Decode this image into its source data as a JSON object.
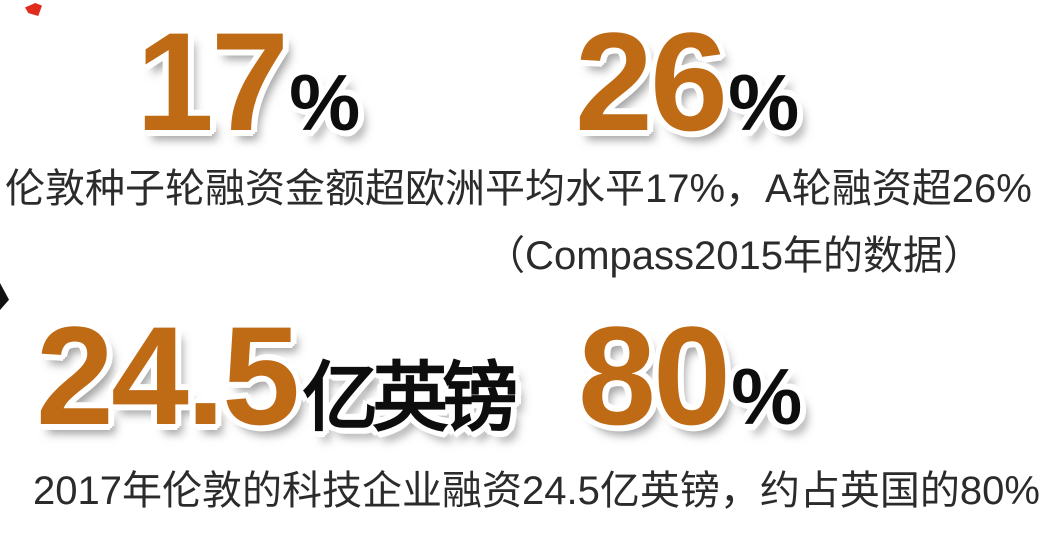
{
  "colors": {
    "accent_orange": "#bf6a15",
    "number_black": "#0d0d0d",
    "caption_gray": "#2b2b2b",
    "corner_red": "#e12b1f",
    "background": "#ffffff"
  },
  "stats": [
    {
      "id": "seed-round-premium",
      "value": "17",
      "unit": "%"
    },
    {
      "id": "series-a-premium",
      "value": "26",
      "unit": "%"
    },
    {
      "id": "london-2017-funding",
      "value": "24.5",
      "unit": "亿英镑"
    },
    {
      "id": "uk-share",
      "value": "80",
      "unit": "%"
    }
  ],
  "captions": {
    "line1": "伦敦种子轮融资金额超欧洲平均水平17%，A轮融资超26%",
    "line2": "（Compass2015年的数据）",
    "line3": "2017年伦敦的科技企业融资24.5亿英镑，约占英国的80%"
  }
}
